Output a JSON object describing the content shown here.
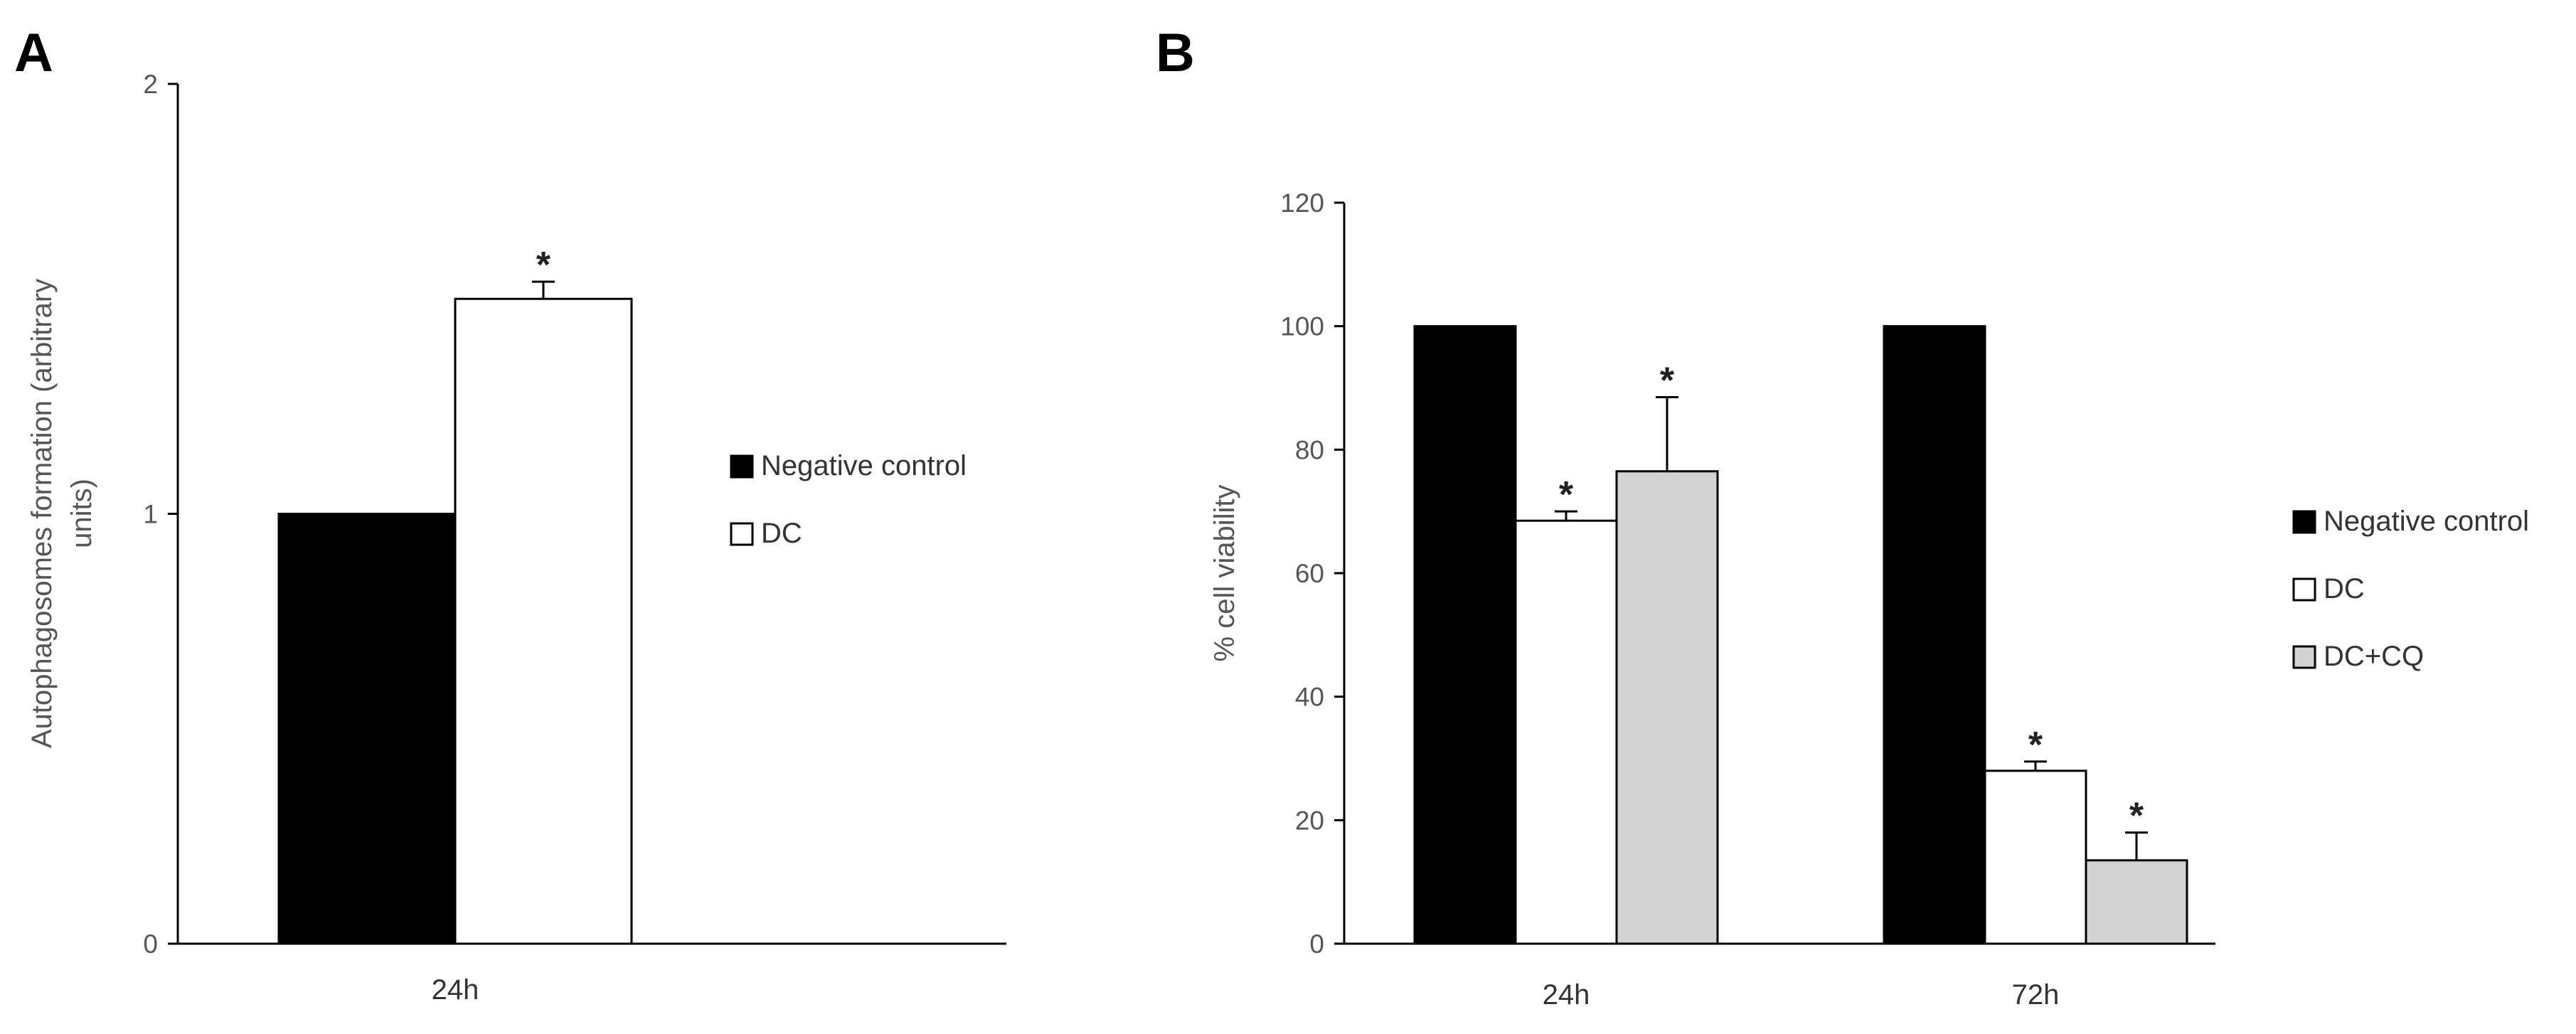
{
  "chart_data": [
    {
      "panel": "A",
      "type": "bar",
      "categories": [
        "24h"
      ],
      "ylabel": "Autophagosomes formation (arbitrary units)",
      "ylim": [
        0,
        2
      ],
      "yticks": [
        "0",
        "1",
        "2"
      ],
      "series": [
        {
          "name": "Negative control",
          "color": "#000000",
          "values": [
            1.0
          ],
          "errors": [
            0
          ],
          "significant": [
            false
          ]
        },
        {
          "name": "DC",
          "color": "#ffffff",
          "values": [
            1.5
          ],
          "errors": [
            0.04
          ],
          "significant": [
            true
          ]
        }
      ],
      "significance_marker": "*",
      "legend_position": "right"
    },
    {
      "panel": "B",
      "type": "bar",
      "categories": [
        "24h",
        "72h"
      ],
      "ylabel": "% cell viability",
      "ylim": [
        0,
        120
      ],
      "yticks": [
        "0",
        "20",
        "40",
        "60",
        "80",
        "100",
        "120"
      ],
      "series": [
        {
          "name": "Negative control",
          "color": "#000000",
          "values": [
            100,
            100
          ],
          "errors": [
            0,
            0
          ],
          "significant": [
            false,
            false
          ]
        },
        {
          "name": "DC",
          "color": "#ffffff",
          "values": [
            68.5,
            28
          ],
          "errors": [
            1.5,
            1.5
          ],
          "significant": [
            true,
            true
          ]
        },
        {
          "name": "DC+CQ",
          "color": "#d3d3d3",
          "values": [
            76.5,
            13.5
          ],
          "errors": [
            12,
            4.5
          ],
          "significant": [
            true,
            true
          ]
        }
      ],
      "significance_marker": "*",
      "legend_position": "right"
    }
  ]
}
